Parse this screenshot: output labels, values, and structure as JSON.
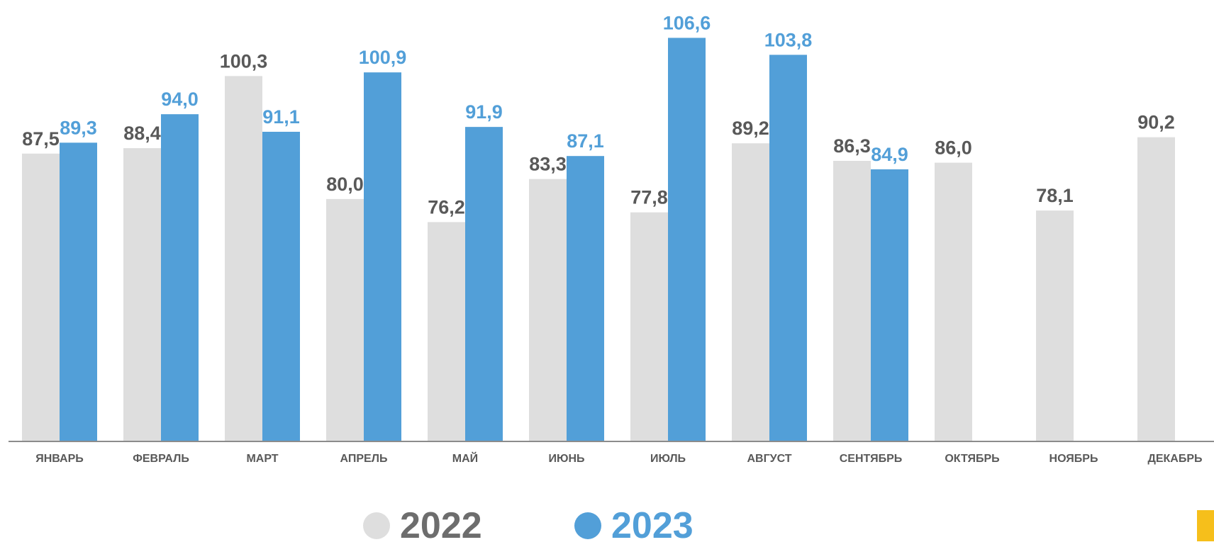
{
  "chart_data": {
    "type": "bar",
    "categories": [
      "ЯНВАРЬ",
      "ФЕВРАЛЬ",
      "МАРТ",
      "АПРЕЛЬ",
      "МАЙ",
      "ИЮНЬ",
      "ИЮЛЬ",
      "АВГУСТ",
      "СЕНТЯБРЬ",
      "ОКТЯБРЬ",
      "НОЯБРЬ",
      "ДЕКАБРЬ"
    ],
    "series": [
      {
        "name": "2022",
        "color": "#dedede",
        "label_color": "#595959",
        "values": [
          87.5,
          88.4,
          100.3,
          80.0,
          76.2,
          83.3,
          77.8,
          89.2,
          86.3,
          86.0,
          78.1,
          90.2
        ],
        "labels": [
          "87,5",
          "88,4",
          "100,3",
          "80,0",
          "76,2",
          "83,3",
          "77,8",
          "89,2",
          "86,3",
          "86,0",
          "78,1",
          "90,2"
        ]
      },
      {
        "name": "2023",
        "color": "#529fd8",
        "label_color": "#529fd8",
        "values": [
          89.3,
          94.0,
          91.1,
          100.9,
          91.9,
          87.1,
          106.6,
          103.8,
          84.9,
          null,
          null,
          null
        ],
        "labels": [
          "89,3",
          "94,0",
          "91,1",
          "100,9",
          "91,9",
          "87,1",
          "106,6",
          "103,8",
          "84,9",
          null,
          null,
          null
        ]
      }
    ],
    "ylim": [
      40,
      107
    ],
    "legend": "bottom-center",
    "grid": false
  },
  "legend": {
    "label_2022": "2022",
    "label_2023": "2023",
    "color_2022": "#dedede",
    "color_2023": "#529fd8"
  },
  "accent_color": "#f6bf1b"
}
